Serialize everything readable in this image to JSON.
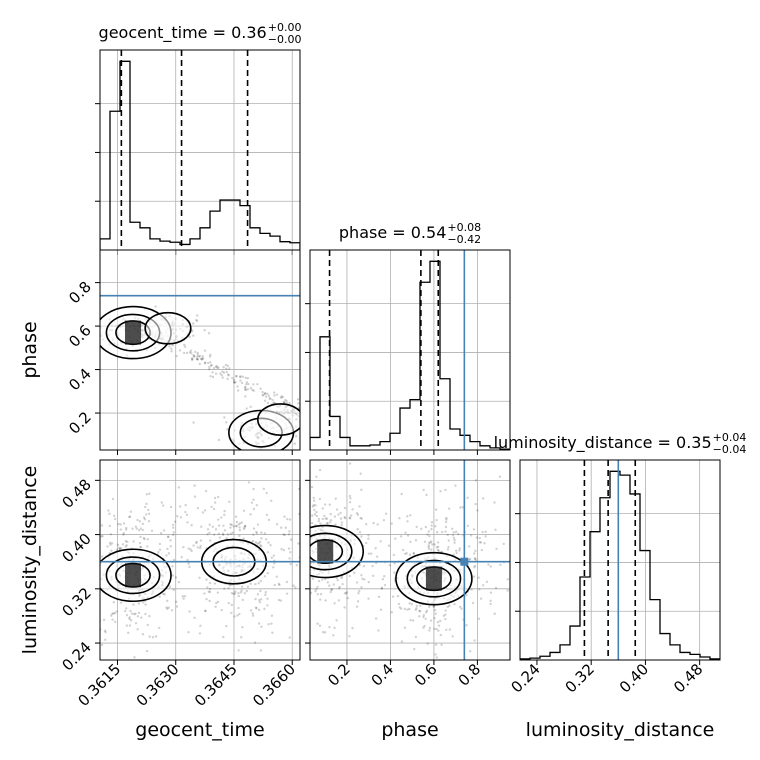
{
  "chart_data": {
    "type": "corner",
    "parameters": [
      "geocent_time",
      "phase",
      "luminosity_distance"
    ],
    "truth_color": "#4682b4",
    "truths": {
      "phase": 0.74,
      "luminosity_distance": 0.36
    },
    "axes": {
      "geocent_time": {
        "lim": [
          0.36105,
          0.3662
        ],
        "ticks": [
          0.3615,
          0.363,
          0.3645,
          0.366
        ],
        "tick_labels": [
          "0.3615",
          "0.3630",
          "0.3645",
          "0.3660"
        ],
        "label": "geocent_time"
      },
      "phase": {
        "lim": [
          0.03,
          0.95
        ],
        "ticks": [
          0.2,
          0.4,
          0.6,
          0.8
        ],
        "tick_labels": [
          "0.2",
          "0.4",
          "0.6",
          "0.8"
        ],
        "label": "phase"
      },
      "luminosity_distance": {
        "lim": [
          0.215,
          0.51
        ],
        "ticks": [
          0.24,
          0.32,
          0.4,
          0.48
        ],
        "tick_labels": [
          "0.24",
          "0.32",
          "0.40",
          "0.48"
        ],
        "label": "luminosity_distance"
      }
    },
    "titles": {
      "geocent_time": {
        "text": "geocent_time = 0.36",
        "plus": "+0.00",
        "minus": "−0.00"
      },
      "phase": {
        "text": "phase = 0.54",
        "plus": "+0.08",
        "minus": "−0.42"
      },
      "luminosity_distance": {
        "text": "luminosity_distance = 0.35",
        "plus": "+0.04",
        "minus": "−0.04"
      }
    },
    "histograms": {
      "geocent_time": {
        "counts": [
          2,
          25,
          34,
          5,
          4,
          2,
          1.6,
          1.4,
          1,
          2,
          4,
          7,
          9,
          9,
          8,
          4,
          3,
          2.5,
          1.5,
          1.3
        ],
        "quantiles": [
          0.3616,
          0.36315,
          0.36485
        ]
      },
      "phase": {
        "counts": [
          3,
          27,
          8,
          3,
          1,
          1,
          1.2,
          2,
          4,
          10,
          12,
          40,
          45,
          17,
          5,
          3.5,
          2,
          1,
          0.5,
          0.2
        ],
        "quantiles": [
          0.12,
          0.54,
          0.62
        ]
      },
      "luminosity_distance": {
        "counts": [
          0.3,
          0.5,
          1,
          2,
          4,
          9,
          22,
          34,
          43,
          50,
          49,
          44,
          29,
          16,
          7,
          4,
          2,
          1.5,
          0.8,
          0.3
        ],
        "quantiles": [
          0.31,
          0.345,
          0.385
        ]
      }
    },
    "density_modes": {
      "phase_vs_geocent_time": [
        {
          "x": 0.3619,
          "y": 0.57,
          "level": "high"
        },
        {
          "x": 0.3628,
          "y": 0.59,
          "level": "low"
        },
        {
          "x": 0.3652,
          "y": 0.11,
          "level": "medium"
        },
        {
          "x": 0.3657,
          "y": 0.17,
          "level": "low"
        }
      ],
      "luminosity_distance_vs_geocent_time": [
        {
          "x": 0.3619,
          "y": 0.34,
          "level": "high"
        },
        {
          "x": 0.3645,
          "y": 0.36,
          "level": "medium"
        }
      ],
      "luminosity_distance_vs_phase": [
        {
          "x": 0.1,
          "y": 0.375,
          "level": "high"
        },
        {
          "x": 0.6,
          "y": 0.335,
          "level": "high"
        }
      ]
    }
  }
}
